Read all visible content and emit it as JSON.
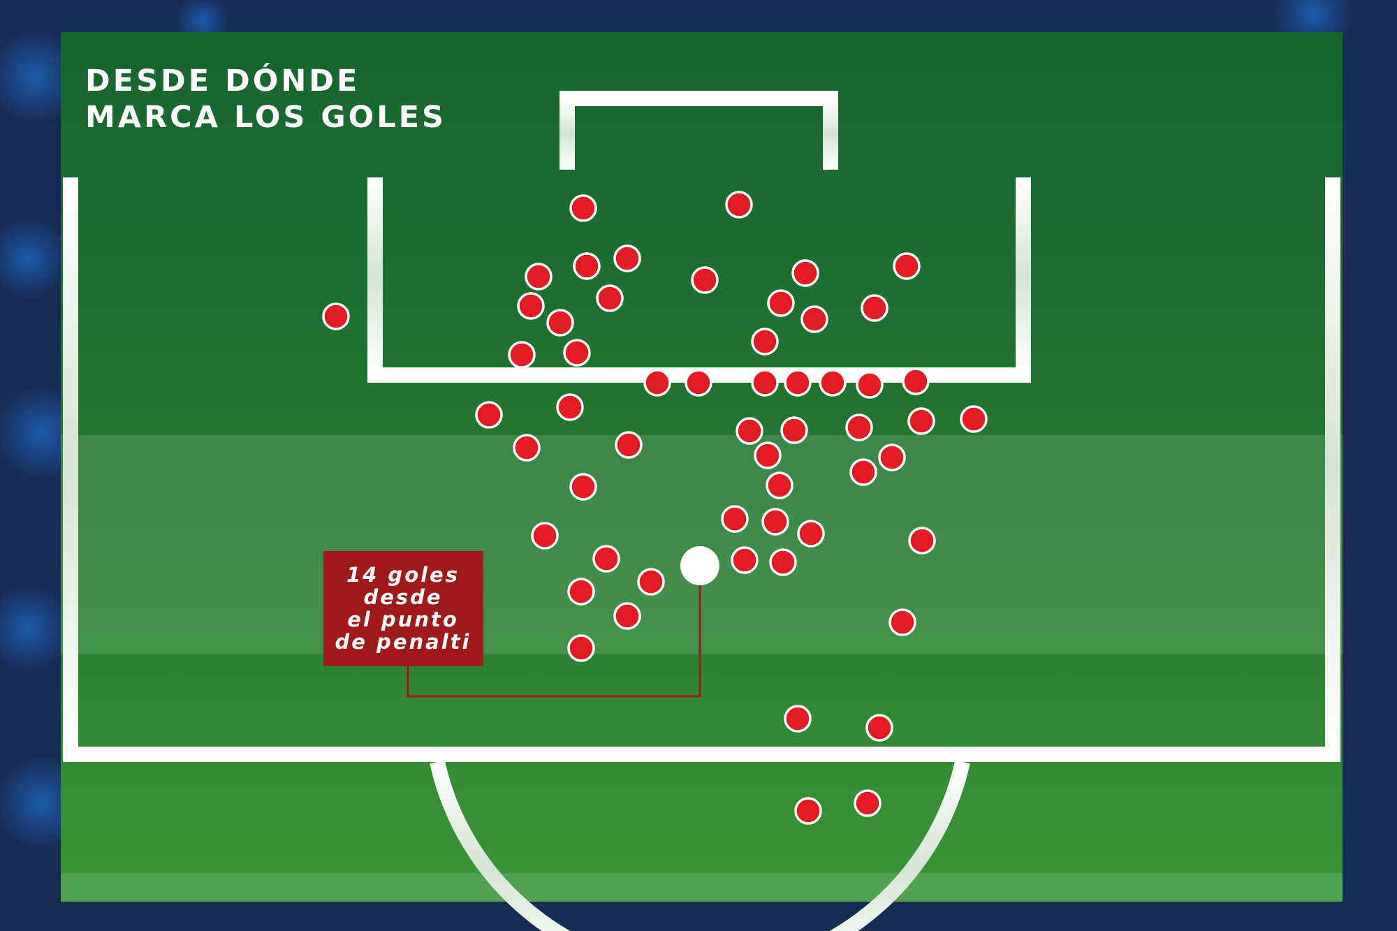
{
  "title": {
    "lines": [
      "DESDE DÓNDE",
      "MARCA LOS GOLES"
    ]
  },
  "callout": {
    "lines": [
      "14 goles",
      "desde",
      "el punto",
      "de penalti"
    ]
  },
  "colors": {
    "background": "#162c52",
    "pitch_dark": "#166530",
    "pitch_light": "#2f8a36",
    "lines": "#ffffff",
    "goal_marker": "#e31b23",
    "penalty_spot": "#ffffff",
    "callout_box": "#a01a1c"
  },
  "icons": {
    "goal_marker": "red-circle-icon",
    "penalty_spot": "white-circle-icon"
  }
}
